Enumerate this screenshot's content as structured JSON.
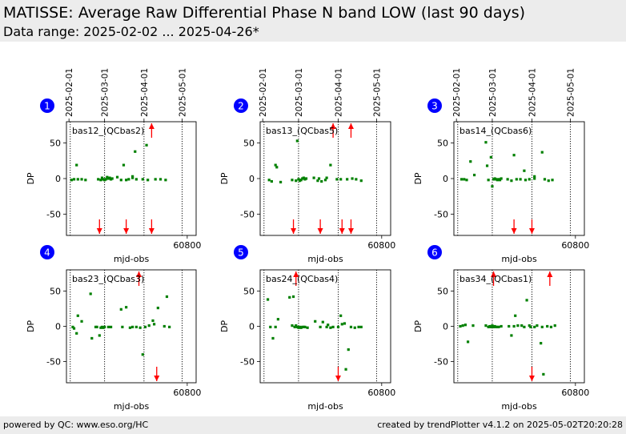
{
  "page": {
    "title": "MATISSE: Average Raw Differential Phase N band LOW (last 90 days)",
    "subtitle": "Data range: 2025-02-02 ... 2025-04-26*",
    "footer_left": "powered by QC: www.eso.org/HC",
    "footer_right": "created by trendPlotter v4.1.2 on 2025-05-02T20:20:28"
  },
  "colors": {
    "header_bg": "#ececec",
    "point": "#008000",
    "outlier_arrow": "#ff0000",
    "badge": "#0000ff",
    "badge_text": "#ffffff"
  },
  "chart_data": [
    {
      "type": "scatter",
      "badge": "1",
      "label": "bas12_(QCbas2)",
      "xlabel": "mjd-obs",
      "ylabel": "DP",
      "xlim": [
        60705,
        60807
      ],
      "ylim": [
        -80,
        80
      ],
      "xticks": [
        60800
      ],
      "yticks": [
        50,
        0,
        -50
      ],
      "date_ticks": [
        {
          "mjd": 60707,
          "label": "2025-02-01"
        },
        {
          "mjd": 60735,
          "label": "2025-03-01"
        },
        {
          "mjd": 60766,
          "label": "2025-04-01"
        },
        {
          "mjd": 60796,
          "label": "2025-05-01"
        }
      ],
      "vlines": [
        60708,
        60735,
        60766,
        60796
      ],
      "points": [
        [
          60709,
          -2
        ],
        [
          60711,
          -1
        ],
        [
          60713,
          19
        ],
        [
          60714,
          -1
        ],
        [
          60717,
          -1
        ],
        [
          60720,
          -2
        ],
        [
          60730,
          -1
        ],
        [
          60732,
          -2
        ],
        [
          60733,
          1
        ],
        [
          60734,
          -1
        ],
        [
          60735,
          -2
        ],
        [
          60736,
          -1
        ],
        [
          60737,
          2
        ],
        [
          60738,
          0
        ],
        [
          60739,
          1
        ],
        [
          60740,
          -1
        ],
        [
          60741,
          0
        ],
        [
          60745,
          2
        ],
        [
          60748,
          -2
        ],
        [
          60750,
          19
        ],
        [
          60752,
          -2
        ],
        [
          60754,
          -1
        ],
        [
          60757,
          1
        ],
        [
          60757,
          3
        ],
        [
          60759,
          38
        ],
        [
          60760,
          -1
        ],
        [
          60765,
          -1
        ],
        [
          60768,
          47
        ],
        [
          60769,
          -2
        ],
        [
          60775,
          -1
        ],
        [
          60779,
          -1
        ],
        [
          60783,
          -2
        ]
      ],
      "outliers_high": [
        60772
      ],
      "outliers_low": [
        60731,
        60752,
        60772
      ]
    },
    {
      "type": "scatter",
      "badge": "2",
      "label": "bas13_(QCbas5)",
      "xlabel": "mjd-obs",
      "ylabel": "DP",
      "xlim": [
        60705,
        60807
      ],
      "ylim": [
        -80,
        80
      ],
      "xticks": [
        60800
      ],
      "yticks": [
        50,
        0,
        -50
      ],
      "date_ticks": [
        {
          "mjd": 60707,
          "label": "2025-02-01"
        },
        {
          "mjd": 60735,
          "label": "2025-03-01"
        },
        {
          "mjd": 60766,
          "label": "2025-04-01"
        },
        {
          "mjd": 60796,
          "label": "2025-05-01"
        }
      ],
      "vlines": [
        60708,
        60735,
        60766,
        60796
      ],
      "points": [
        [
          60712,
          -2
        ],
        [
          60714,
          -4
        ],
        [
          60717,
          19
        ],
        [
          60718,
          16
        ],
        [
          60721,
          -5
        ],
        [
          60730,
          -2
        ],
        [
          60733,
          -3
        ],
        [
          60734,
          53
        ],
        [
          60735,
          -1
        ],
        [
          60736,
          -3
        ],
        [
          60737,
          -2
        ],
        [
          60738,
          0
        ],
        [
          60739,
          1
        ],
        [
          60740,
          -1
        ],
        [
          60741,
          0
        ],
        [
          60747,
          1
        ],
        [
          60750,
          -3
        ],
        [
          60751,
          0
        ],
        [
          60753,
          -4
        ],
        [
          60756,
          -2
        ],
        [
          60757,
          1
        ],
        [
          60760,
          19
        ],
        [
          60765,
          -1
        ],
        [
          60768,
          -1
        ],
        [
          60773,
          -1
        ],
        [
          60777,
          0
        ],
        [
          60780,
          -1
        ],
        [
          60784,
          -3
        ]
      ],
      "outliers_high": [
        60762,
        60776
      ],
      "outliers_low": [
        60731,
        60752,
        60769,
        60776
      ]
    },
    {
      "type": "scatter",
      "badge": "3",
      "label": "bas14_(QCbas6)",
      "xlabel": "mjd-obs",
      "ylabel": "DP",
      "xlim": [
        60705,
        60807
      ],
      "ylim": [
        -80,
        80
      ],
      "xticks": [
        60800
      ],
      "yticks": [
        50,
        0,
        -50
      ],
      "date_ticks": [
        {
          "mjd": 60707,
          "label": "2025-02-01"
        },
        {
          "mjd": 60735,
          "label": "2025-03-01"
        },
        {
          "mjd": 60766,
          "label": "2025-04-01"
        },
        {
          "mjd": 60796,
          "label": "2025-05-01"
        }
      ],
      "vlines": [
        60708,
        60735,
        60766,
        60796
      ],
      "points": [
        [
          60711,
          -1
        ],
        [
          60713,
          -1
        ],
        [
          60715,
          -2
        ],
        [
          60718,
          24
        ],
        [
          60721,
          5
        ],
        [
          60730,
          51
        ],
        [
          60731,
          18
        ],
        [
          60732,
          -2
        ],
        [
          60734,
          30
        ],
        [
          60735,
          -11
        ],
        [
          60736,
          -1
        ],
        [
          60737,
          0
        ],
        [
          60738,
          -1
        ],
        [
          60739,
          -2
        ],
        [
          60740,
          -1
        ],
        [
          60741,
          -2
        ],
        [
          60742,
          0
        ],
        [
          60747,
          -1
        ],
        [
          60750,
          -3
        ],
        [
          60752,
          33
        ],
        [
          60754,
          -1
        ],
        [
          60757,
          -1
        ],
        [
          60760,
          11
        ],
        [
          60761,
          -2
        ],
        [
          60764,
          -1
        ],
        [
          60768,
          0
        ],
        [
          60768,
          3
        ],
        [
          60774,
          37
        ],
        [
          60776,
          -1
        ],
        [
          60779,
          -3
        ],
        [
          60782,
          -2
        ]
      ],
      "outliers_high": [],
      "outliers_low": [
        60752,
        60766
      ]
    },
    {
      "type": "scatter",
      "badge": "4",
      "label": "bas23_(QCbas3)",
      "xlabel": "mjd-obs",
      "ylabel": "DP",
      "xlim": [
        60705,
        60807
      ],
      "ylim": [
        -80,
        80
      ],
      "xticks": [
        60800
      ],
      "yticks": [
        50,
        0,
        -50
      ],
      "date_ticks": [],
      "vlines": [
        60708,
        60735,
        60766,
        60796
      ],
      "points": [
        [
          60710,
          -1
        ],
        [
          60711,
          -3
        ],
        [
          60713,
          -10
        ],
        [
          60714,
          15
        ],
        [
          60717,
          7
        ],
        [
          60724,
          46
        ],
        [
          60725,
          -17
        ],
        [
          60728,
          -1
        ],
        [
          60729,
          -1
        ],
        [
          60731,
          -13
        ],
        [
          60732,
          -2
        ],
        [
          60733,
          -1
        ],
        [
          60734,
          -2
        ],
        [
          60735,
          -1
        ],
        [
          60738,
          -1
        ],
        [
          60740,
          -1
        ],
        [
          60748,
          24
        ],
        [
          60749,
          -1
        ],
        [
          60752,
          27
        ],
        [
          60755,
          -2
        ],
        [
          60757,
          -1
        ],
        [
          60760,
          -1
        ],
        [
          60763,
          -2
        ],
        [
          60765,
          -40
        ],
        [
          60767,
          -1
        ],
        [
          60770,
          1
        ],
        [
          60773,
          8
        ],
        [
          60774,
          3
        ],
        [
          60777,
          26
        ],
        [
          60782,
          0
        ],
        [
          60784,
          42
        ],
        [
          60786,
          -1
        ]
      ],
      "outliers_high": [
        60762
      ],
      "outliers_low": [
        60776
      ]
    },
    {
      "type": "scatter",
      "badge": "5",
      "label": "bas24_(QCbas4)",
      "xlabel": "mjd-obs",
      "ylabel": "DP",
      "xlim": [
        60705,
        60807
      ],
      "ylim": [
        -80,
        80
      ],
      "xticks": [
        60800
      ],
      "yticks": [
        50,
        0,
        -50
      ],
      "date_ticks": [],
      "vlines": [
        60708,
        60735,
        60766,
        60796
      ],
      "points": [
        [
          60711,
          38
        ],
        [
          60713,
          -1
        ],
        [
          60715,
          -17
        ],
        [
          60717,
          -1
        ],
        [
          60719,
          10
        ],
        [
          60728,
          41
        ],
        [
          60730,
          1
        ],
        [
          60731,
          42
        ],
        [
          60732,
          -1
        ],
        [
          60733,
          1
        ],
        [
          60734,
          -1
        ],
        [
          60735,
          -2
        ],
        [
          60736,
          -1
        ],
        [
          60737,
          -2
        ],
        [
          60738,
          -1
        ],
        [
          60739,
          -1
        ],
        [
          60740,
          -1
        ],
        [
          60742,
          -2
        ],
        [
          60748,
          7
        ],
        [
          60752,
          -1
        ],
        [
          60754,
          6
        ],
        [
          60757,
          -1
        ],
        [
          60758,
          2
        ],
        [
          60760,
          -2
        ],
        [
          60762,
          -1
        ],
        [
          60766,
          -1
        ],
        [
          60768,
          15
        ],
        [
          60769,
          3
        ],
        [
          60771,
          4
        ],
        [
          60772,
          -61
        ],
        [
          60774,
          -33
        ],
        [
          60776,
          -1
        ],
        [
          60779,
          -2
        ],
        [
          60782,
          -1
        ],
        [
          60784,
          -1
        ]
      ],
      "outliers_high": [
        60733
      ],
      "outliers_low": [
        60766
      ]
    },
    {
      "type": "scatter",
      "badge": "6",
      "label": "bas34_(QCbas1)",
      "xlabel": "mjd-obs",
      "ylabel": "DP",
      "xlim": [
        60705,
        60807
      ],
      "ylim": [
        -80,
        80
      ],
      "xticks": [
        60800
      ],
      "yticks": [
        50,
        0,
        -50
      ],
      "date_ticks": [],
      "vlines": [
        60708,
        60735,
        60766,
        60796
      ],
      "points": [
        [
          60710,
          0
        ],
        [
          60712,
          1
        ],
        [
          60714,
          2
        ],
        [
          60716,
          -22
        ],
        [
          60720,
          1
        ],
        [
          60730,
          1
        ],
        [
          60732,
          -1
        ],
        [
          60733,
          0
        ],
        [
          60734,
          -1
        ],
        [
          60735,
          1
        ],
        [
          60736,
          -1
        ],
        [
          60737,
          0
        ],
        [
          60738,
          -1
        ],
        [
          60739,
          -1
        ],
        [
          60740,
          -1
        ],
        [
          60742,
          0
        ],
        [
          60748,
          0
        ],
        [
          60750,
          -13
        ],
        [
          60752,
          0
        ],
        [
          60753,
          15
        ],
        [
          60755,
          1
        ],
        [
          60758,
          1
        ],
        [
          60760,
          -1
        ],
        [
          60762,
          37
        ],
        [
          60764,
          1
        ],
        [
          60765,
          -1
        ],
        [
          60768,
          -1
        ],
        [
          60770,
          1
        ],
        [
          60773,
          -24
        ],
        [
          60774,
          -1
        ],
        [
          60775,
          -68
        ],
        [
          60778,
          0
        ],
        [
          60781,
          -1
        ],
        [
          60784,
          1
        ]
      ],
      "outliers_high": [
        60736,
        60780
      ],
      "outliers_low": [
        60766
      ]
    }
  ]
}
